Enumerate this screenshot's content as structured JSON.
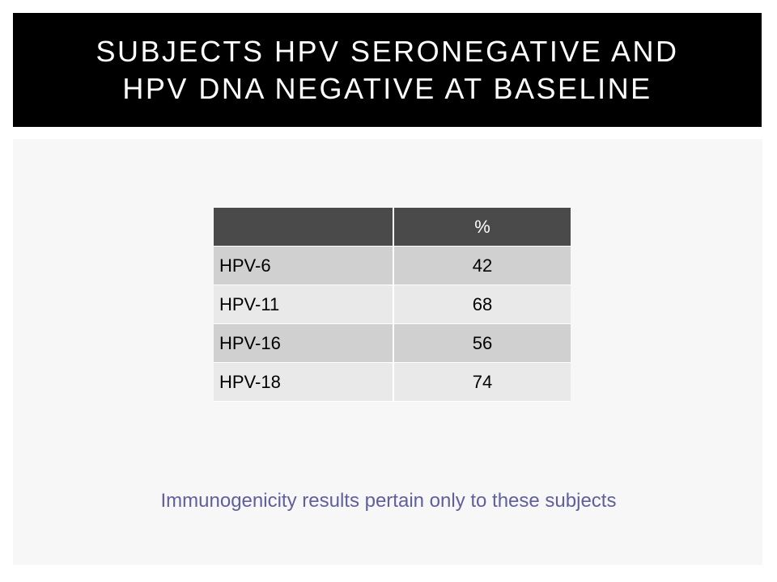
{
  "title": {
    "line1": "SUBJECTS HPV SERONEGATIVE AND",
    "line2": "HPV DNA NEGATIVE AT BASELINE"
  },
  "table": {
    "header": [
      "",
      "%"
    ],
    "rows": [
      {
        "label": "HPV-6",
        "value": "42"
      },
      {
        "label": "HPV-11",
        "value": "68"
      },
      {
        "label": "HPV-16",
        "value": "56"
      },
      {
        "label": "HPV-18",
        "value": "74"
      }
    ]
  },
  "footnote": "Immunogenicity results pertain only to these subjects",
  "colors": {
    "title_bg": "#000000",
    "title_text": "#ffffff",
    "table_header_bg": "#4a4a4a",
    "row_dark": "#d0d0d0",
    "row_light": "#e9e9e9",
    "footnote_text": "#5f5f9e",
    "content_bg": "#f7f7f7"
  }
}
